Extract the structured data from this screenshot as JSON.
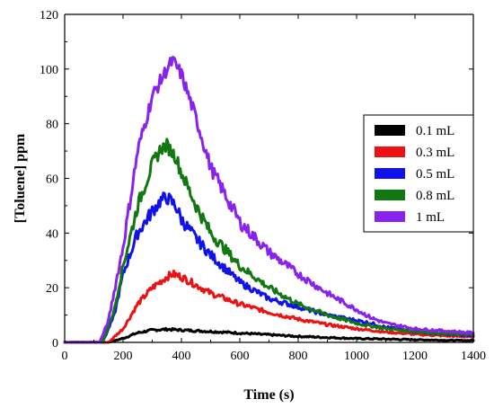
{
  "chart_data": {
    "type": "line",
    "xlabel": "Time (s)",
    "ylabel": "[Toluene] ppm",
    "xlim": [
      0,
      1400
    ],
    "ylim": [
      0,
      120
    ],
    "xticks": [
      0,
      200,
      400,
      600,
      800,
      1000,
      1200,
      1400
    ],
    "yticks": [
      0,
      20,
      40,
      60,
      80,
      100,
      120
    ],
    "legend_position": "right",
    "series": [
      {
        "name": "0.1 mL",
        "color": "#000000",
        "x": [
          0,
          150,
          200,
          250,
          300,
          350,
          400,
          500,
          600,
          700,
          800,
          900,
          1000,
          1100,
          1200,
          1300,
          1400
        ],
        "y": [
          0,
          0,
          1.5,
          3.5,
          4.5,
          4.8,
          4.5,
          4,
          3.4,
          2.8,
          2.2,
          1.8,
          1.4,
          1.2,
          1,
          0.8,
          0.7
        ]
      },
      {
        "name": "0.3 mL",
        "color": "#ee1111",
        "x": [
          0,
          150,
          200,
          250,
          300,
          350,
          370,
          400,
          450,
          500,
          600,
          700,
          800,
          900,
          1000,
          1100,
          1200,
          1300,
          1400
        ],
        "y": [
          0,
          0,
          5,
          14,
          20,
          24,
          25,
          24,
          21,
          18,
          14,
          11,
          8.5,
          6.5,
          5,
          3.8,
          3,
          2.4,
          2
        ]
      },
      {
        "name": "0.5 mL",
        "color": "#1111ee",
        "x": [
          0,
          130,
          170,
          200,
          250,
          300,
          330,
          350,
          380,
          400,
          450,
          500,
          600,
          700,
          800,
          900,
          1000,
          1050,
          1100,
          1200,
          1300,
          1400
        ],
        "y": [
          0,
          0,
          10,
          25,
          40,
          48,
          52,
          53,
          50,
          45,
          38,
          32,
          22,
          16,
          13,
          10,
          8,
          7,
          5.5,
          4,
          3,
          2.5
        ]
      },
      {
        "name": "0.8 mL",
        "color": "#117711",
        "x": [
          0,
          130,
          170,
          200,
          250,
          300,
          330,
          350,
          380,
          400,
          450,
          500,
          600,
          700,
          800,
          900,
          1000,
          1100,
          1200,
          1300,
          1400
        ],
        "y": [
          0,
          0,
          12,
          28,
          50,
          65,
          71,
          72,
          68,
          62,
          50,
          40,
          28,
          20,
          14,
          10,
          7,
          5,
          4,
          3.2,
          2.8
        ]
      },
      {
        "name": "1 mL",
        "color": "#8822ee",
        "x": [
          0,
          120,
          150,
          200,
          250,
          300,
          350,
          370,
          400,
          450,
          500,
          600,
          700,
          800,
          900,
          1000,
          1050,
          1100,
          1200,
          1300,
          1400
        ],
        "y": [
          0,
          0,
          8,
          35,
          70,
          90,
          100,
          103,
          98,
          82,
          64,
          44,
          33,
          25,
          18,
          12,
          9,
          7,
          5,
          4.2,
          3.5
        ]
      }
    ]
  }
}
